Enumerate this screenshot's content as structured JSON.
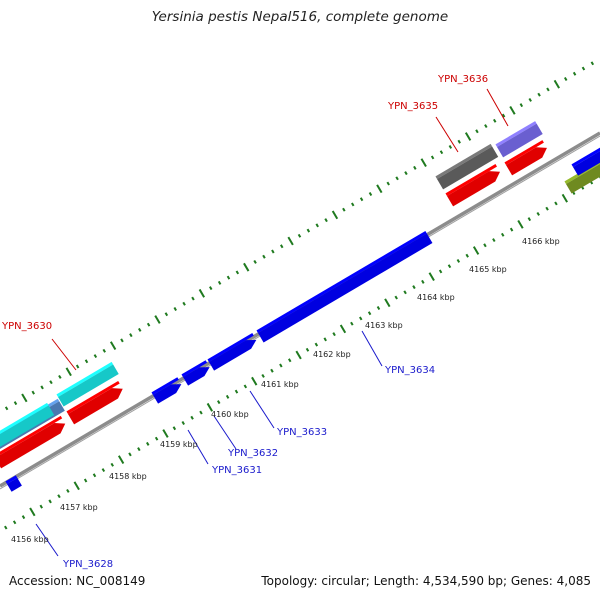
{
  "title": "Yersinia pestis Nepal516, complete genome",
  "footer": {
    "accession": "Accession: NC_008149",
    "summary": "Topology: circular; Length: 4,534,590 bp; Genes: 4,085"
  },
  "colors": {
    "backbone": "#8c8c8c",
    "tick": "#1f7a1f",
    "forward_label": "#cc0000",
    "reverse_label": "#1a1acc"
  },
  "tick_labels": [
    "4156 kbp",
    "4157 kbp",
    "4158 kbp",
    "4159 kbp",
    "4160 kbp",
    "4161 kbp",
    "4162 kbp",
    "4163 kbp",
    "4164 kbp",
    "4165 kbp",
    "4166 kbp"
  ],
  "gene_labels": [
    {
      "text": "YPN_3630",
      "strand": "forward"
    },
    {
      "text": "YPN_3635",
      "strand": "forward"
    },
    {
      "text": "YPN_3636",
      "strand": "forward"
    },
    {
      "text": "YPN_3628",
      "strand": "reverse"
    },
    {
      "text": "YPN_3631",
      "strand": "reverse"
    },
    {
      "text": "YPN_3632",
      "strand": "reverse"
    },
    {
      "text": "YPN_3633",
      "strand": "reverse"
    },
    {
      "text": "YPN_3634",
      "strand": "reverse"
    }
  ],
  "feature_colors": {
    "cds_forward": "#e00000",
    "cds_reverse": "#0000e0",
    "teal": "#16c8c8",
    "steel": "#4a78b0",
    "grey": "#5a5a5a",
    "lavender": "#6a5fd0",
    "olive": "#6f8a20"
  }
}
